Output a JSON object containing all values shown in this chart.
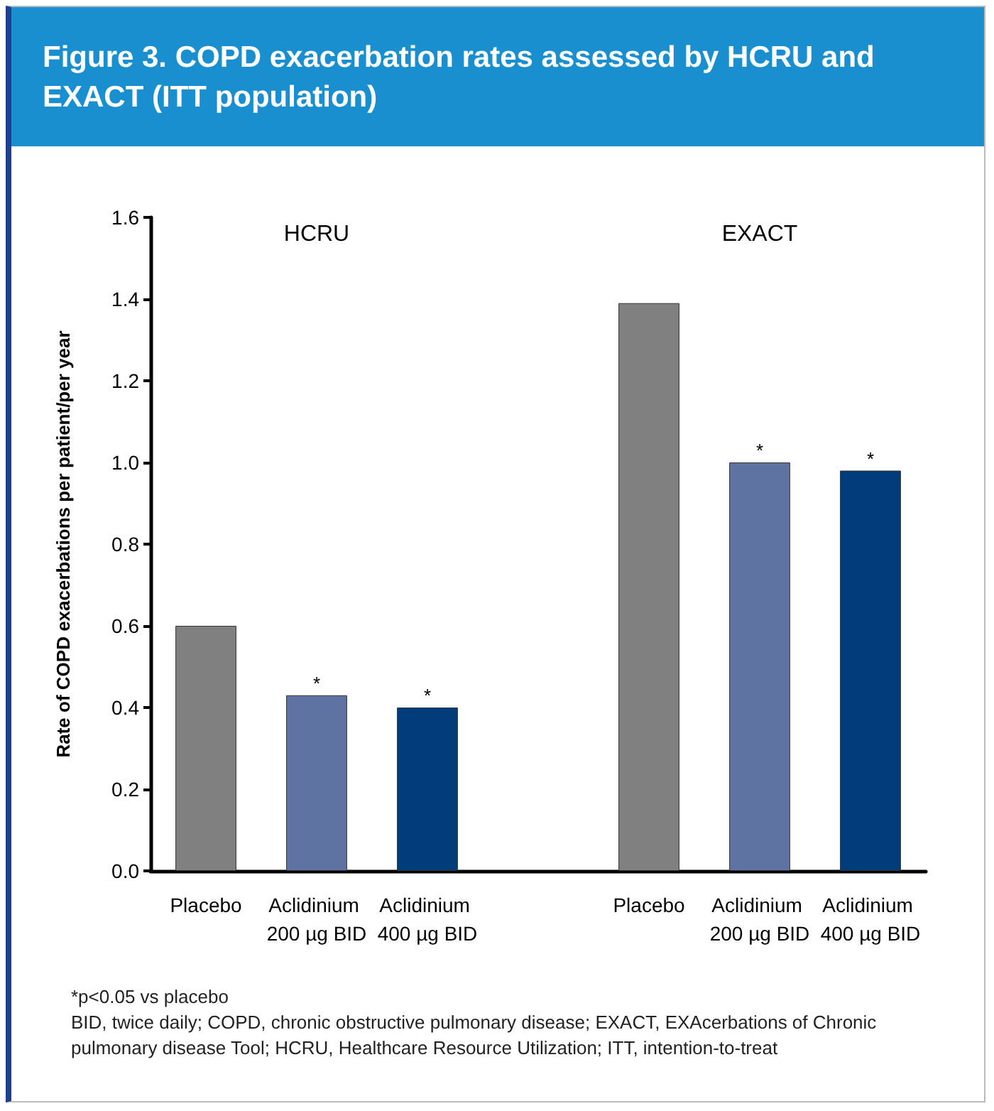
{
  "chart_data": {
    "type": "bar",
    "title": "Figure 3. COPD exacerbation rates assessed by HCRU and EXACT (ITT population)",
    "ylabel": "Rate of COPD exacerbations per patient/per year",
    "categories": [
      "Placebo",
      "Aclidinium 200 µg BID",
      "Aclidinium 400 µg BID",
      null,
      "Placebo",
      "Aclidinium 200 µg BID",
      "Aclidinium 400 µg BID"
    ],
    "values": [
      0.6,
      0.43,
      0.4,
      null,
      1.39,
      1.0,
      0.98
    ],
    "colors": [
      "#808080",
      "#5f73a3",
      "#023c7a",
      null,
      "#808080",
      "#5f73a3",
      "#023c7a"
    ],
    "value_labels": [
      null,
      "*",
      "*",
      null,
      null,
      "*",
      "*"
    ],
    "ylim": [
      0,
      1.6
    ],
    "yticks": [
      {
        "value": 0,
        "label": "0.0"
      },
      0.2,
      0.4,
      0.6,
      0.8,
      {
        "value": 1,
        "label": "1.0"
      },
      1.2,
      1.4,
      1.6
    ],
    "grid": false,
    "annotations": [
      "HCRU",
      "EXACT",
      "*p<0.05 vs placebo",
      "BID, twice daily; COPD, chronic obstructive pulmonary disease; EXACT, EXAcerbations of Chronic pulmonary disease Tool; HCRU, Healthcare Resource Utilization; ITT, intention-to-treat"
    ]
  }
}
